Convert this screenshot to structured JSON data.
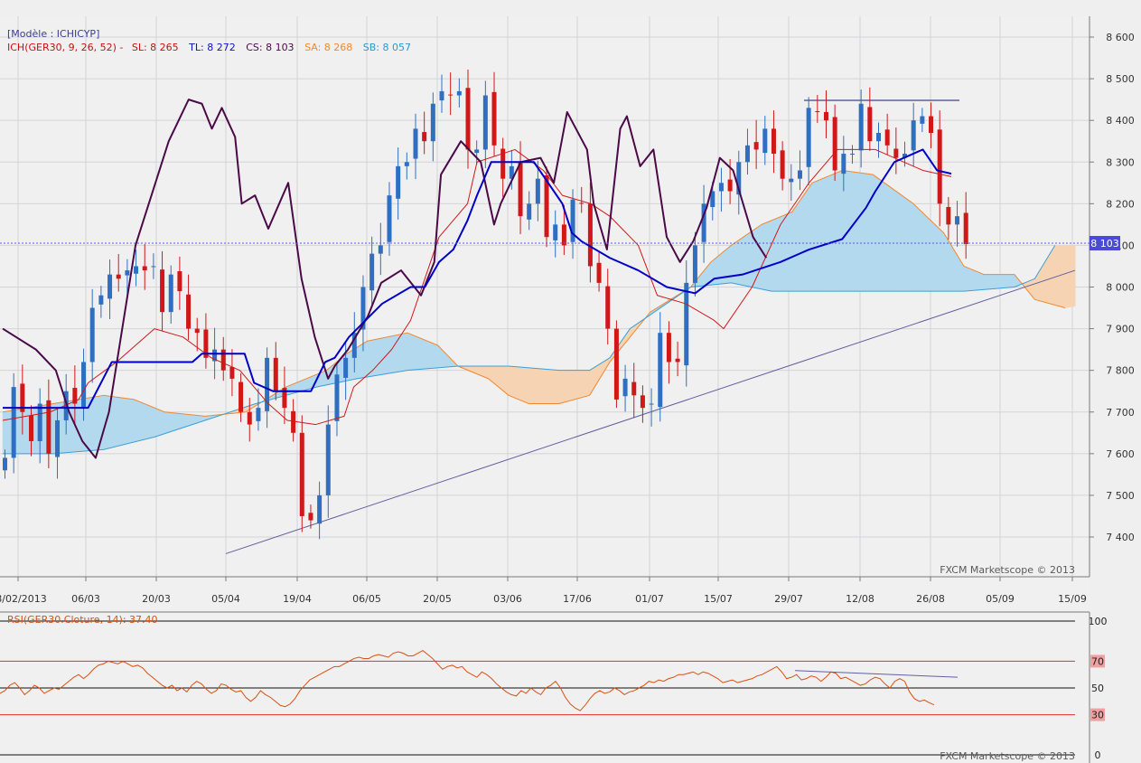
{
  "header": {
    "model_label": "[Modèle : ICHICYP]",
    "ich_label": "ICH(GER30, 9, 26, 52) -",
    "sl_label": "SL: 8 265",
    "tl_label": "TL: 8 272",
    "cs_label": "CS: 8 103",
    "sa_label": "SA: 8 268",
    "sb_label": "SB: 8 057"
  },
  "watermark_main": "FXCM Marketscope © 2013",
  "watermark_rsi": "FXCM Marketscope © 2013",
  "current_price_label": "8 103",
  "rsi_label": "RSI(GER30.Cloture, 14): 37.40",
  "colors": {
    "background": "#efefef",
    "grid": "#d4d4d8",
    "bull_candle": "#2f6fc2",
    "bear_candle": "#d01818",
    "tenkan": "#0000c8",
    "kijun": "#d01818",
    "chikou": "#4a0a48",
    "span_a": "#f08830",
    "span_b": "#3aa0d8",
    "cloud_bull": "#b3d9ef",
    "cloud_bear": "#f6d3b3",
    "trendline": "#6060a0",
    "rsi_line": "#d85010"
  },
  "chart_data": [
    {
      "type": "candlestick",
      "instrument": "GER30",
      "x_ticks": [
        "18/02/2013",
        "06/03",
        "20/03",
        "05/04",
        "19/04",
        "06/05",
        "20/05",
        "03/06",
        "17/06",
        "01/07",
        "15/07",
        "29/07",
        "12/08",
        "26/08",
        "05/09",
        "15/09"
      ],
      "y_ticks": [
        "8 600",
        "8 500",
        "8 400",
        "8 300",
        "8 200",
        "8 100",
        "8 000",
        "7 900",
        "7 800",
        "7 700",
        "7 600",
        "7 500",
        "7 400"
      ],
      "ylim": [
        7310,
        8640
      ],
      "current_price": 8103,
      "levels": {
        "SL": 8265,
        "TL": 8272,
        "CS": 8103,
        "SA": 8268,
        "SB": 8057
      },
      "closes": [
        7590,
        7760,
        7700,
        7630,
        7720,
        7600,
        7680,
        7750,
        7720,
        7820,
        7950,
        7980,
        8030,
        8020,
        8040,
        8050,
        8040,
        8050,
        7940,
        8030,
        7990,
        7900,
        7890,
        7830,
        7850,
        7800,
        7780,
        7700,
        7670,
        7710,
        7830,
        7750,
        7710,
        7650,
        7450,
        7440,
        7500,
        7670,
        7790,
        7830,
        7890,
        8000,
        8080,
        8100,
        8220,
        8290,
        8300,
        8380,
        8350,
        8440,
        8470,
        8460,
        8470,
        8330,
        8330,
        8460,
        8340,
        8260,
        8290,
        8170,
        8200,
        8260,
        8120,
        8150,
        8100,
        8210,
        8200,
        8050,
        8010,
        7900,
        7730,
        7780,
        7740,
        7710,
        7720,
        7890,
        7820,
        7820,
        8010,
        8100,
        8200,
        8230,
        8250,
        8230,
        8300,
        8340,
        8330,
        8380,
        8320,
        8260,
        8260,
        8280,
        8430,
        8420,
        8400,
        8280,
        8320,
        8320,
        8440,
        8350,
        8370,
        8340,
        8310,
        8320,
        8400,
        8410,
        8370,
        8200,
        8150,
        8170,
        8103
      ],
      "tenkan_points": [
        [
          0,
          7710
        ],
        [
          18,
          7710
        ],
        [
          23,
          7820
        ],
        [
          40,
          7820
        ],
        [
          42,
          7840
        ],
        [
          51,
          7840
        ],
        [
          53,
          7770
        ],
        [
          57,
          7750
        ],
        [
          65,
          7750
        ],
        [
          68,
          7820
        ],
        [
          70,
          7830
        ],
        [
          73,
          7880
        ],
        [
          80,
          7960
        ],
        [
          86,
          8000
        ],
        [
          89,
          8000
        ],
        [
          92,
          8060
        ],
        [
          95,
          8090
        ],
        [
          98,
          8160
        ],
        [
          100,
          8220
        ],
        [
          103,
          8300
        ],
        [
          112,
          8300
        ],
        [
          118,
          8200
        ],
        [
          120,
          8130
        ],
        [
          122,
          8110
        ],
        [
          128,
          8070
        ],
        [
          134,
          8040
        ],
        [
          140,
          8000
        ],
        [
          146,
          7985
        ],
        [
          150,
          8020
        ],
        [
          156,
          8030
        ],
        [
          164,
          8060
        ],
        [
          170,
          8090
        ],
        [
          177,
          8115
        ],
        [
          182,
          8190
        ],
        [
          184,
          8230
        ],
        [
          188,
          8300
        ],
        [
          194,
          8330
        ],
        [
          197,
          8280
        ],
        [
          200,
          8272
        ]
      ],
      "kijun_points": [
        [
          0,
          7680
        ],
        [
          10,
          7700
        ],
        [
          16,
          7730
        ],
        [
          18,
          7770
        ],
        [
          24,
          7820
        ],
        [
          32,
          7900
        ],
        [
          38,
          7880
        ],
        [
          44,
          7830
        ],
        [
          50,
          7800
        ],
        [
          56,
          7720
        ],
        [
          60,
          7680
        ],
        [
          66,
          7670
        ],
        [
          72,
          7690
        ],
        [
          74,
          7760
        ],
        [
          78,
          7800
        ],
        [
          82,
          7850
        ],
        [
          86,
          7920
        ],
        [
          92,
          8120
        ],
        [
          98,
          8200
        ],
        [
          100,
          8300
        ],
        [
          108,
          8330
        ],
        [
          114,
          8280
        ],
        [
          118,
          8220
        ],
        [
          124,
          8200
        ],
        [
          128,
          8170
        ],
        [
          134,
          8100
        ],
        [
          138,
          7980
        ],
        [
          144,
          7960
        ],
        [
          150,
          7920
        ],
        [
          152,
          7900
        ],
        [
          158,
          8000
        ],
        [
          164,
          8150
        ],
        [
          170,
          8250
        ],
        [
          176,
          8330
        ],
        [
          184,
          8330
        ],
        [
          194,
          8280
        ],
        [
          200,
          8265
        ]
      ],
      "chikou_points": [
        [
          0,
          7900
        ],
        [
          10,
          7850
        ],
        [
          16,
          7800
        ],
        [
          20,
          7700
        ],
        [
          24,
          7630
        ],
        [
          28,
          7590
        ],
        [
          32,
          7700
        ],
        [
          36,
          7900
        ],
        [
          40,
          8100
        ],
        [
          46,
          8250
        ],
        [
          50,
          8350
        ],
        [
          56,
          8450
        ],
        [
          60,
          8440
        ],
        [
          63,
          8380
        ],
        [
          66,
          8430
        ],
        [
          70,
          8360
        ],
        [
          72,
          8200
        ],
        [
          76,
          8220
        ],
        [
          80,
          8140
        ],
        [
          86,
          8250
        ],
        [
          90,
          8020
        ],
        [
          94,
          7880
        ],
        [
          98,
          7780
        ],
        [
          100,
          7810
        ],
        [
          104,
          7850
        ],
        [
          110,
          7930
        ],
        [
          114,
          8010
        ],
        [
          120,
          8040
        ],
        [
          126,
          7980
        ],
        [
          130,
          8060
        ],
        [
          132,
          8270
        ],
        [
          138,
          8350
        ],
        [
          144,
          8300
        ],
        [
          148,
          8150
        ],
        [
          150,
          8200
        ],
        [
          156,
          8300
        ],
        [
          162,
          8310
        ],
        [
          166,
          8250
        ],
        [
          170,
          8420
        ],
        [
          176,
          8330
        ],
        [
          178,
          8200
        ],
        [
          182,
          8090
        ],
        [
          186,
          8380
        ],
        [
          188,
          8410
        ],
        [
          192,
          8290
        ],
        [
          196,
          8330
        ],
        [
          200,
          8120
        ],
        [
          204,
          8060
        ],
        [
          208,
          8110
        ],
        [
          212,
          8190
        ],
        [
          216,
          8310
        ],
        [
          220,
          8280
        ],
        [
          226,
          8120
        ],
        [
          230,
          8070
        ]
      ],
      "span_a_points": [
        [
          0,
          7700
        ],
        [
          10,
          7720
        ],
        [
          20,
          7740
        ],
        [
          26,
          7730
        ],
        [
          32,
          7700
        ],
        [
          40,
          7690
        ],
        [
          48,
          7700
        ],
        [
          52,
          7730
        ],
        [
          56,
          7760
        ],
        [
          64,
          7800
        ],
        [
          68,
          7840
        ],
        [
          72,
          7870
        ],
        [
          80,
          7890
        ],
        [
          86,
          7860
        ],
        [
          90,
          7810
        ],
        [
          96,
          7780
        ],
        [
          100,
          7740
        ],
        [
          104,
          7720
        ],
        [
          110,
          7720
        ],
        [
          116,
          7740
        ],
        [
          120,
          7820
        ],
        [
          124,
          7880
        ],
        [
          128,
          7940
        ],
        [
          136,
          8000
        ],
        [
          140,
          8060
        ],
        [
          144,
          8100
        ],
        [
          150,
          8150
        ],
        [
          156,
          8180
        ],
        [
          160,
          8250
        ],
        [
          166,
          8280
        ],
        [
          172,
          8270
        ],
        [
          180,
          8200
        ],
        [
          186,
          8130
        ],
        [
          190,
          8050
        ],
        [
          194,
          8030
        ],
        [
          200,
          8030
        ],
        [
          204,
          7970
        ],
        [
          210,
          7950
        ],
        [
          220,
          7970
        ],
        [
          230,
          8020
        ],
        [
          240,
          8070
        ],
        [
          250,
          8120
        ],
        [
          260,
          8160
        ],
        [
          270,
          8200
        ],
        [
          280,
          8230
        ],
        [
          290,
          8270
        ],
        [
          310,
          8320
        ]
      ],
      "span_b_points": [
        [
          0,
          7600
        ],
        [
          10,
          7600
        ],
        [
          20,
          7610
        ],
        [
          30,
          7640
        ],
        [
          40,
          7680
        ],
        [
          50,
          7720
        ],
        [
          56,
          7740
        ],
        [
          62,
          7760
        ],
        [
          70,
          7780
        ],
        [
          80,
          7800
        ],
        [
          90,
          7810
        ],
        [
          100,
          7810
        ],
        [
          110,
          7800
        ],
        [
          116,
          7800
        ],
        [
          120,
          7830
        ],
        [
          124,
          7900
        ],
        [
          130,
          7950
        ],
        [
          136,
          8000
        ],
        [
          144,
          8010
        ],
        [
          152,
          7990
        ],
        [
          160,
          7990
        ],
        [
          180,
          7990
        ],
        [
          190,
          7990
        ],
        [
          200,
          8000
        ],
        [
          204,
          8020
        ],
        [
          208,
          8100
        ],
        [
          220,
          8100
        ],
        [
          240,
          8100
        ],
        [
          250,
          8090
        ],
        [
          256,
          8070
        ],
        [
          270,
          8060
        ],
        [
          280,
          8055
        ],
        [
          310,
          8057
        ]
      ],
      "trendline": [
        [
          7360,
          0.195
        ],
        [
          8040,
          0.94
        ]
      ],
      "resistance": 8448
    },
    {
      "type": "line",
      "name": "RSI",
      "label": "RSI(GER30.Cloture, 14): 37.40",
      "ylim": [
        0,
        100
      ],
      "y_ticks": [
        "100",
        "70",
        "50",
        "30",
        "0"
      ],
      "levels": [
        100,
        70,
        50,
        30,
        0
      ],
      "last_value": 37.4,
      "values": [
        46,
        48,
        52,
        54,
        50,
        45,
        48,
        52,
        50,
        46,
        48,
        50,
        49,
        52,
        55,
        58,
        60,
        57,
        60,
        64,
        67,
        68,
        70,
        69,
        68,
        70,
        68,
        66,
        67,
        65,
        61,
        58,
        55,
        52,
        50,
        52,
        48,
        50,
        47,
        52,
        55,
        53,
        49,
        46,
        48,
        53,
        52,
        49,
        47,
        48,
        43,
        40,
        43,
        48,
        45,
        43,
        40,
        37,
        36,
        38,
        42,
        48,
        52,
        56,
        58,
        60,
        62,
        64,
        66,
        66,
        68,
        70,
        72,
        73,
        72,
        72,
        74,
        75,
        74,
        73,
        76,
        77,
        76,
        74,
        74,
        76,
        78,
        75,
        72,
        68,
        64,
        66,
        67,
        65,
        66,
        62,
        60,
        58,
        62,
        60,
        57,
        53,
        50,
        47,
        45,
        44,
        48,
        46,
        50,
        47,
        45,
        50,
        52,
        55,
        50,
        43,
        38,
        35,
        33,
        37,
        42,
        46,
        48,
        46,
        47,
        50,
        48,
        45,
        47,
        48,
        50,
        52,
        55,
        54,
        56,
        55,
        57,
        58,
        60,
        60,
        61,
        62,
        60,
        62,
        61,
        59,
        57,
        54,
        55,
        56,
        54,
        55,
        56,
        57,
        59,
        60,
        62,
        64,
        66,
        62,
        57,
        58,
        60,
        56,
        57,
        59,
        58,
        55,
        58,
        62,
        61,
        57,
        58,
        56,
        54,
        52,
        53,
        56,
        58,
        57,
        53,
        50,
        55,
        57,
        55,
        47,
        42,
        40,
        41,
        39,
        37.4
      ],
      "divergence_line": [
        [
          0.745,
          63
        ],
        [
          0.895,
          58
        ]
      ]
    }
  ]
}
